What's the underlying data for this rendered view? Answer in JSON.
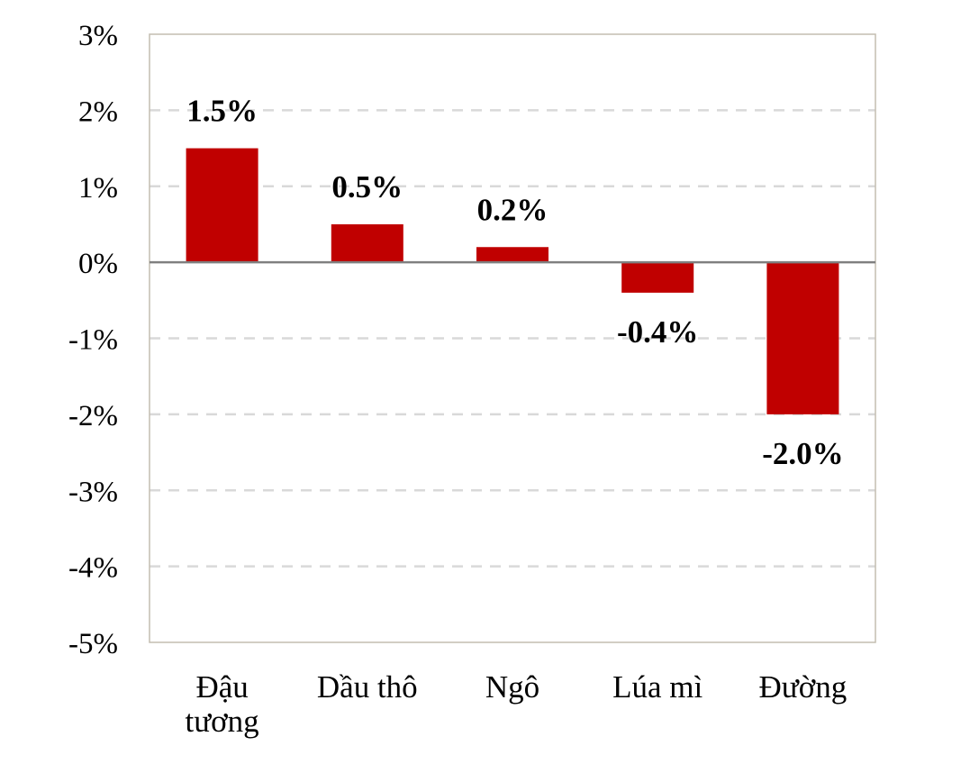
{
  "chart_data": {
    "type": "bar",
    "categories": [
      [
        "Đậu",
        "tương"
      ],
      [
        "Dầu thô"
      ],
      [
        "Ngô"
      ],
      [
        "Lúa mì"
      ],
      [
        "Đường"
      ]
    ],
    "values": [
      1.5,
      0.5,
      0.2,
      -0.4,
      -2.0
    ],
    "data_labels": [
      "1.5%",
      "0.5%",
      "0.2%",
      "-0.4%",
      "-2.0%"
    ],
    "ylim": [
      -5,
      3
    ],
    "y_ticks": [
      3,
      2,
      1,
      0,
      -1,
      -2,
      -3,
      -4,
      -5
    ],
    "y_tick_labels": [
      "3%",
      "2%",
      "1%",
      "0%",
      "-1%",
      "-2%",
      "-3%",
      "-4%",
      "-5%"
    ],
    "title": "",
    "xlabel": "",
    "ylabel": "",
    "grid": true,
    "legend": "none",
    "colors": {
      "bar": "#c00000",
      "grid": "#d9d9d9",
      "zero_line": "#808080",
      "frame": "#c4bdb1"
    }
  }
}
